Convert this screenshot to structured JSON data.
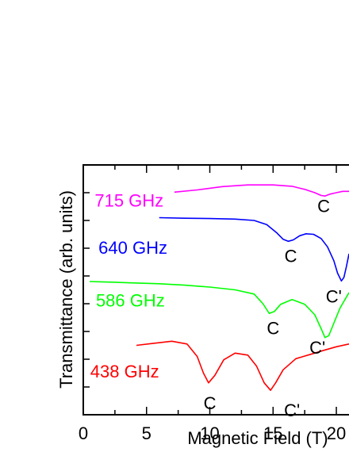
{
  "chart_data": {
    "type": "line",
    "title": "",
    "xlabel": "Magnetic Field (T)",
    "ylabel": "Transmittance (arb. units)",
    "xlim": [
      0,
      21
    ],
    "ylim": [
      0,
      9
    ],
    "x_ticks": [
      0,
      5,
      10,
      15,
      20
    ],
    "x_tick_labels": [
      "0",
      "5",
      "10",
      "15",
      "20"
    ],
    "x_minor_ticks": [
      2.5,
      7.5,
      12.5,
      17.5
    ],
    "y_ticks": [
      1,
      2,
      3,
      4,
      5,
      6,
      7,
      8
    ],
    "y_tick_labels_shown": false,
    "grid": false,
    "legend": "none",
    "series": [
      {
        "name": "715 GHz",
        "color": "#ff00ff",
        "x": [
          7.2,
          9,
          11,
          13,
          15,
          16.5,
          17.5,
          18.3,
          18.8,
          19.1,
          19.5,
          20,
          20.5,
          21
        ],
        "y": [
          8.02,
          8.1,
          8.22,
          8.28,
          8.28,
          8.23,
          8.12,
          8.0,
          7.9,
          7.88,
          7.95,
          8.0,
          8.05,
          8.05
        ]
      },
      {
        "name": "640 GHz",
        "color": "#0000ff",
        "x": [
          6.0,
          8,
          10,
          12,
          13.5,
          14.5,
          15.3,
          15.8,
          16.2,
          16.6,
          17.1,
          17.6,
          18.2,
          18.8,
          19.3,
          19.8,
          20.1,
          20.4,
          20.6,
          20.8,
          21
        ],
        "y": [
          7.1,
          7.08,
          7.07,
          7.05,
          7.0,
          6.85,
          6.55,
          6.32,
          6.25,
          6.3,
          6.45,
          6.52,
          6.5,
          6.35,
          6.05,
          5.55,
          5.1,
          4.82,
          4.95,
          5.35,
          5.8
        ]
      },
      {
        "name": "586 GHz",
        "color": "#00ff00",
        "x": [
          0.5,
          2,
          4,
          6,
          8,
          10,
          12,
          13.5,
          14.2,
          14.7,
          15.1,
          15.6,
          16.5,
          17.5,
          18.3,
          18.8,
          19.1,
          19.4,
          19.8,
          20.3,
          21
        ],
        "y": [
          4.8,
          4.78,
          4.75,
          4.72,
          4.67,
          4.6,
          4.5,
          4.35,
          4.0,
          3.65,
          3.72,
          3.98,
          4.15,
          3.98,
          3.6,
          3.1,
          2.78,
          2.85,
          3.3,
          3.85,
          4.4
        ]
      },
      {
        "name": "438 GHz",
        "color": "#ff0000",
        "x": [
          4.2,
          5.5,
          7,
          8.2,
          9,
          9.5,
          9.9,
          10.4,
          11.1,
          12,
          13,
          13.7,
          14.3,
          14.8,
          15.2,
          15.8,
          16.8,
          18,
          19,
          20,
          21
        ],
        "y": [
          2.5,
          2.57,
          2.65,
          2.55,
          2.1,
          1.5,
          1.15,
          1.42,
          1.98,
          2.22,
          2.15,
          1.75,
          1.15,
          0.88,
          1.15,
          1.62,
          2.02,
          2.18,
          2.32,
          2.45,
          2.55
        ]
      }
    ],
    "series_labels": [
      {
        "text": "715 GHz",
        "color": "#ff00ff",
        "x": 0.9,
        "y": 7.5
      },
      {
        "text": "640 GHz",
        "color": "#0000ff",
        "x": 1.2,
        "y": 5.8
      },
      {
        "text": "586 GHz",
        "color": "#00ff00",
        "x": 1.0,
        "y": 3.9
      },
      {
        "text": "438 GHz",
        "color": "#ff0000",
        "x": 0.55,
        "y": 1.35
      }
    ],
    "annotations": [
      {
        "text": "C",
        "x": 19.0,
        "y": 7.3
      },
      {
        "text": "C",
        "x": 16.4,
        "y": 5.5
      },
      {
        "text": "C'",
        "x": 19.8,
        "y": 4.05
      },
      {
        "text": "C",
        "x": 15.0,
        "y": 2.9
      },
      {
        "text": "C'",
        "x": 18.5,
        "y": 2.2
      },
      {
        "text": "C",
        "x": 10.0,
        "y": 0.2
      },
      {
        "text": "C'",
        "x": 16.5,
        "y": -0.05
      }
    ]
  }
}
